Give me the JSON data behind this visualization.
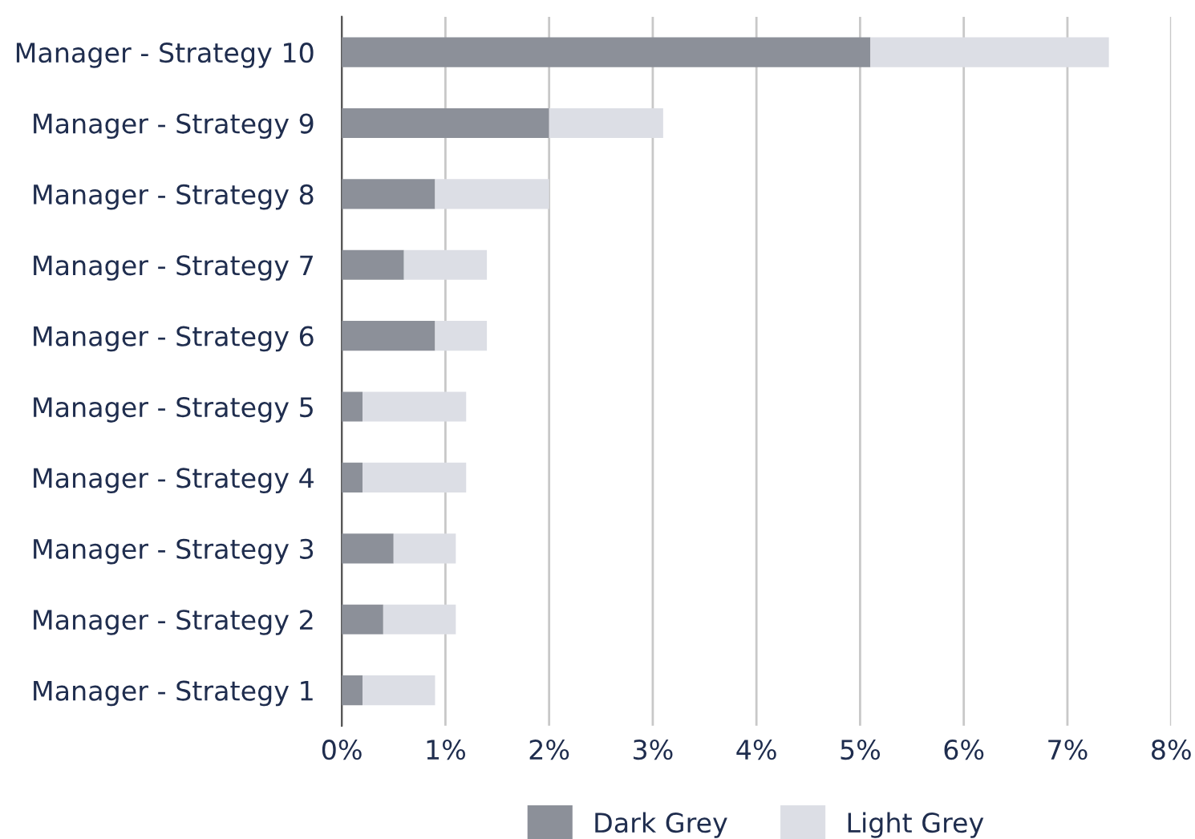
{
  "chart_data": {
    "type": "bar",
    "orientation": "horizontal",
    "stacked": true,
    "categories": [
      "Manager - Strategy 10",
      "Manager - Strategy 9",
      "Manager - Strategy 8",
      "Manager - Strategy 7",
      "Manager - Strategy 6",
      "Manager - Strategy 5",
      "Manager - Strategy 4",
      "Manager - Strategy 3",
      "Manager - Strategy 2",
      "Manager - Strategy 1"
    ],
    "series": [
      {
        "name": "Dark Grey",
        "color": "#8c9099",
        "values": [
          5.1,
          2.0,
          0.9,
          0.6,
          0.9,
          0.2,
          0.2,
          0.5,
          0.4,
          0.2
        ]
      },
      {
        "name": "Light Grey",
        "color": "#dcdee5",
        "values": [
          2.3,
          1.1,
          1.1,
          0.8,
          0.5,
          1.0,
          1.0,
          0.6,
          0.7,
          0.7
        ]
      }
    ],
    "xlim": [
      0,
      8
    ],
    "xticks": [
      {
        "value": 0,
        "label": "0%"
      },
      {
        "value": 1,
        "label": "1%"
      },
      {
        "value": 2,
        "label": "2%"
      },
      {
        "value": 3,
        "label": "3%"
      },
      {
        "value": 4,
        "label": "4%"
      },
      {
        "value": 5,
        "label": "5%"
      },
      {
        "value": 6,
        "label": "6%"
      },
      {
        "value": 7,
        "label": "7%"
      },
      {
        "value": 8,
        "label": "8%"
      }
    ],
    "grid": "x",
    "legend": "bottom"
  }
}
